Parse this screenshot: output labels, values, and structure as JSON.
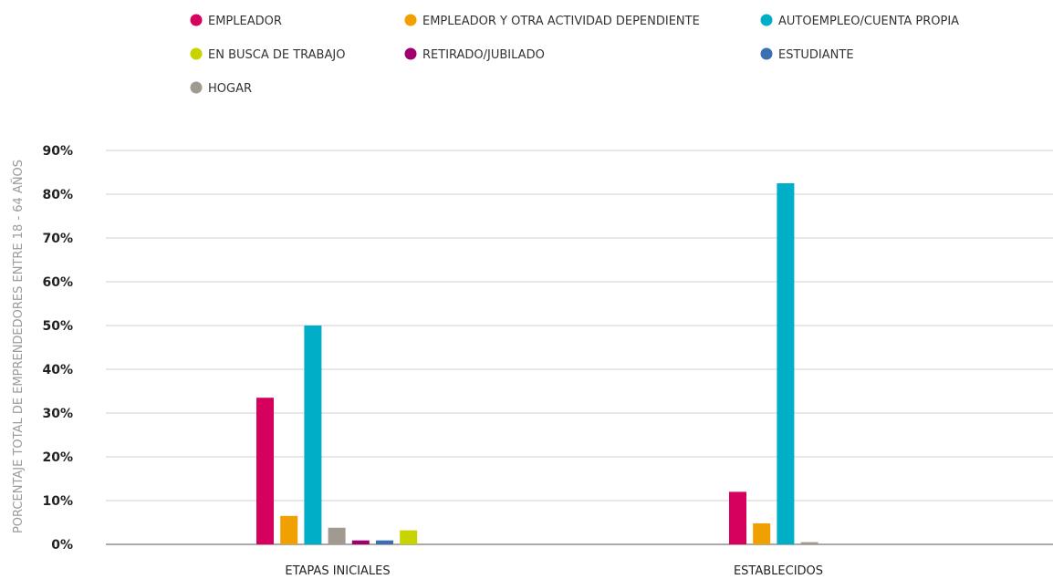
{
  "chart_data": {
    "type": "bar",
    "ylabel": "PORCENTAJE TOTAL DE EMPRENDEDORES ENTRE 18 - 64 AÑOS",
    "xlabel": "",
    "ylim": [
      0,
      90
    ],
    "yticks": [
      0,
      10,
      20,
      30,
      40,
      50,
      60,
      70,
      80,
      90
    ],
    "ytick_labels": [
      "0%",
      "10%",
      "20%",
      "30%",
      "40%",
      "50%",
      "60%",
      "70%",
      "80%",
      "90%"
    ],
    "grid": true,
    "legend_position": "top",
    "categories": [
      "ETAPAS INICIALES",
      "ESTABLECIDOS"
    ],
    "series": [
      {
        "name": "EMPLEADOR",
        "color": "#d6005e",
        "values": [
          33.5,
          12.0
        ]
      },
      {
        "name": "EMPLEADOR Y OTRA ACTIVIDAD DEPENDIENTE",
        "color": "#f0a000",
        "values": [
          6.5,
          4.8
        ]
      },
      {
        "name": "AUTOEMPLEO/CUENTA PROPIA",
        "color": "#00aec8",
        "values": [
          50.0,
          82.5
        ]
      },
      {
        "name": "HOGAR",
        "color": "#a29a90",
        "values": [
          3.8,
          0.5
        ]
      },
      {
        "name": "RETIRADO/JUBILADO",
        "color": "#a0006e",
        "values": [
          0.9,
          0
        ]
      },
      {
        "name": "ESTUDIANTE",
        "color": "#3a6fb0",
        "values": [
          0.9,
          0
        ]
      },
      {
        "name": "EN BUSCA DE TRABAJO",
        "color": "#c8d400",
        "values": [
          3.2,
          0
        ]
      }
    ],
    "legend_rows": [
      [
        "EMPLEADOR",
        "EMPLEADOR Y OTRA ACTIVIDAD DEPENDIENTE",
        "AUTOEMPLEO/CUENTA PROPIA"
      ],
      [
        "EN BUSCA DE TRABAJO",
        "RETIRADO/JUBILADO",
        "ESTUDIANTE"
      ],
      [
        "HOGAR"
      ]
    ]
  }
}
